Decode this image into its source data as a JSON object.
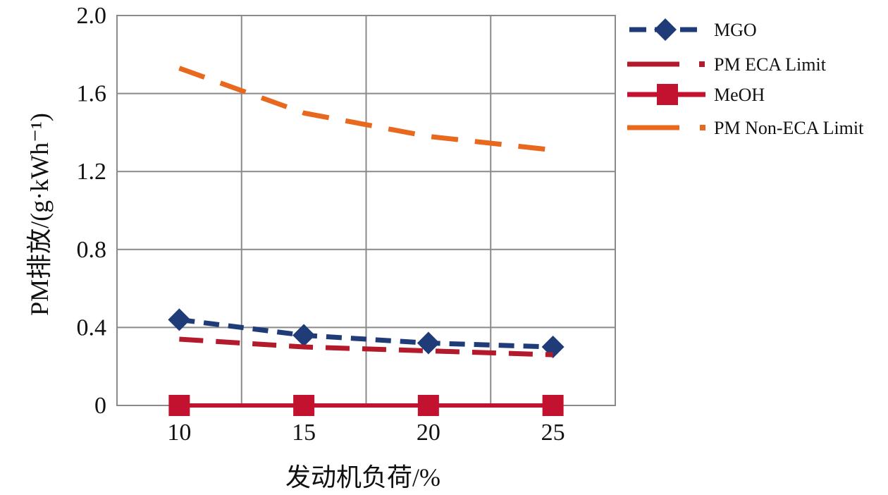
{
  "chart_data": {
    "type": "line",
    "title": "",
    "xlabel": "发动机负荷/%",
    "ylabel": "PM排放/(g·kWh⁻¹)",
    "categories": [
      "10",
      "15",
      "20",
      "25"
    ],
    "x": [
      10,
      15,
      20,
      25
    ],
    "ylim": [
      0,
      2.0
    ],
    "xlim": [
      7.5,
      27.5
    ],
    "y_ticks": [
      "0",
      "0.4",
      "0.8",
      "1.2",
      "1.6",
      "2.0"
    ],
    "y_tick_values": [
      0,
      0.4,
      0.8,
      1.2,
      1.6,
      2.0
    ],
    "grid": true,
    "legend_position": "right",
    "series": [
      {
        "name": "MGO",
        "values": [
          0.44,
          0.36,
          0.32,
          0.3
        ],
        "color": "#1f3b78",
        "style": "dashed",
        "marker": "diamond"
      },
      {
        "name": "PM ECA Limit",
        "values": [
          0.34,
          0.3,
          0.28,
          0.26
        ],
        "color": "#b31b2d",
        "style": "dashed",
        "marker": "none"
      },
      {
        "name": "MeOH",
        "values": [
          0.0,
          0.0,
          0.0,
          0.0
        ],
        "color": "#c3122f",
        "style": "solid",
        "marker": "square"
      },
      {
        "name": "PM Non-ECA Limit",
        "values": [
          1.73,
          1.5,
          1.38,
          1.31
        ],
        "color": "#e8691d",
        "style": "dashed",
        "marker": "none"
      }
    ]
  }
}
